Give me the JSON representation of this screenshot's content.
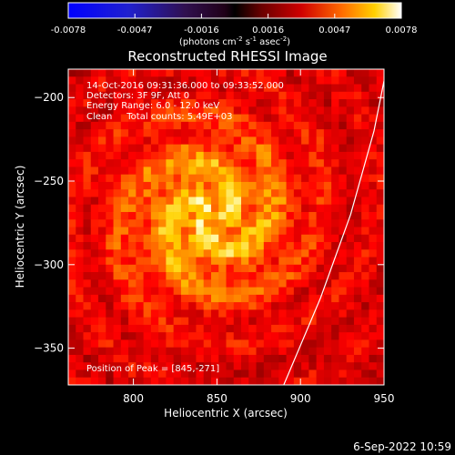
{
  "colorbar": {
    "ticks": [
      "-0.0078",
      "-0.0047",
      "-0.0016",
      "0.0016",
      "0.0047",
      "0.0078"
    ],
    "units_text": "(photons cm",
    "units_exp1": "-2",
    "units_mid": " s",
    "units_exp2": "-1",
    "units_mid2": " asec",
    "units_exp3": "-2",
    "units_end": ")"
  },
  "plot": {
    "title": "Reconstructed RHESSI Image",
    "xlabel": "Heliocentric X (arcsec)",
    "ylabel": "Heliocentric Y (arcsec)",
    "xticks": [
      "800",
      "850",
      "900",
      "950"
    ],
    "yticks": [
      "−200",
      "−250",
      "−300",
      "−350"
    ],
    "xticks_values": [
      800,
      850,
      900,
      950
    ],
    "yticks_values": [
      -200,
      -250,
      -300,
      -350
    ],
    "xlim": [
      761,
      950
    ],
    "ylim": [
      -372,
      -183
    ],
    "info_lines": [
      "14-Oct-2016 09:31:36.000 to 09:33:52.000",
      "Detectors: 3F 9F, Att 0",
      "Energy Range: 6.0 - 12.0 keV",
      "Clean     Total counts: 5.49E+03"
    ],
    "peak_label": "Position of Peak = [845,-271]",
    "peak": [
      845,
      -271
    ],
    "limb_points": [
      [
        890,
        -372
      ],
      [
        912,
        -320
      ],
      [
        930,
        -270
      ],
      [
        944,
        -220
      ],
      [
        950,
        -190
      ],
      [
        952,
        -178
      ]
    ]
  },
  "footer": {
    "date": "6-Sep-2022 10:59"
  },
  "colors": {
    "background": "#000000",
    "text": "#ffffff"
  }
}
